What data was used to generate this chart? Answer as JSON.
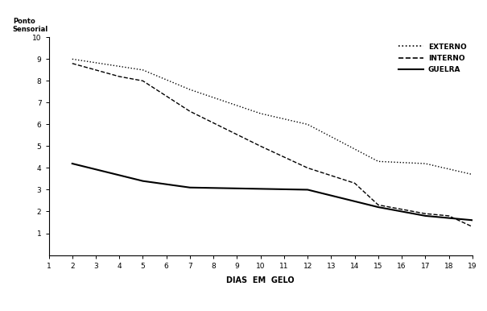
{
  "title": "",
  "ylabel_line1": "Ponto",
  "ylabel_line2": "Sensorial",
  "xlabel": "DIAS  EM  GELO",
  "x_ticks": [
    1,
    2,
    3,
    4,
    5,
    6,
    7,
    8,
    9,
    10,
    11,
    12,
    13,
    14,
    15,
    16,
    17,
    18,
    19
  ],
  "ylim": [
    0,
    10
  ],
  "xlim": [
    1,
    19
  ],
  "yticks": [
    1,
    2,
    3,
    4,
    5,
    6,
    7,
    8,
    9,
    10
  ],
  "externo_x": [
    2,
    5,
    7,
    10,
    12,
    15,
    17,
    19
  ],
  "externo_y": [
    9.0,
    8.5,
    7.6,
    6.5,
    6.0,
    4.3,
    4.2,
    3.7
  ],
  "interno_x": [
    2,
    3,
    4,
    5,
    7,
    10,
    12,
    14,
    15,
    17,
    18,
    19
  ],
  "interno_y": [
    8.8,
    8.5,
    8.2,
    8.0,
    6.6,
    5.0,
    4.0,
    3.3,
    2.3,
    1.9,
    1.8,
    1.3
  ],
  "guelra_x": [
    2,
    5,
    7,
    12,
    15,
    17,
    19
  ],
  "guelra_y": [
    4.2,
    3.4,
    3.1,
    3.0,
    2.2,
    1.8,
    1.6
  ],
  "line_color": "#000000",
  "bg_color": "#ffffff",
  "legend_labels": [
    "EXTERNO",
    "INTERNO",
    "GUELRA"
  ],
  "ylabel_fontsize": 6,
  "xlabel_fontsize": 7,
  "tick_fontsize": 6.5
}
